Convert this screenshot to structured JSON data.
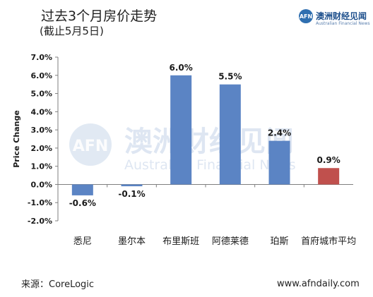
{
  "header": {
    "title": "过去3个月房价走势",
    "subtitle": "(截止5月5日)"
  },
  "logo": {
    "mark": "AFN",
    "cn_name": "澳洲财经见闻",
    "en_name": "Australian Financial News"
  },
  "watermark": {
    "cn": "澳洲财经见闻",
    "en": "Australian Financial News",
    "mark": "AFN"
  },
  "footer": {
    "source": "来源：CoreLogic",
    "site": "www.afndaily.com"
  },
  "colors": {
    "bar_default": "#5b84c4",
    "bar_highlight": "#c0504d",
    "axis": "#7f7f7f",
    "grid": "#d9d9d9"
  },
  "chart_data": {
    "type": "bar",
    "title": "",
    "ylabel": "Price Change",
    "xlabel": "",
    "categories": [
      "悉尼",
      "墨尔本",
      "布里斯班",
      "阿德莱德",
      "珀斯",
      "首府城市平均"
    ],
    "values": [
      -0.6,
      -0.1,
      6.0,
      5.5,
      2.4,
      0.9
    ],
    "data_labels": [
      "-0.6%",
      "-0.1%",
      "6.0%",
      "5.5%",
      "2.4%",
      "0.9%"
    ],
    "highlight_index": 5,
    "ylim": [
      -2.0,
      7.0
    ],
    "yticks": [
      7.0,
      6.0,
      5.0,
      4.0,
      3.0,
      2.0,
      1.0,
      0.0,
      -1.0,
      -2.0
    ],
    "ytick_labels": [
      "7.0%",
      "6.0%",
      "5.0%",
      "4.0%",
      "3.0%",
      "2.0%",
      "1.0%",
      "0.0%",
      "-1.0%",
      "-2.0%"
    ],
    "grid": false,
    "legend": "none"
  }
}
